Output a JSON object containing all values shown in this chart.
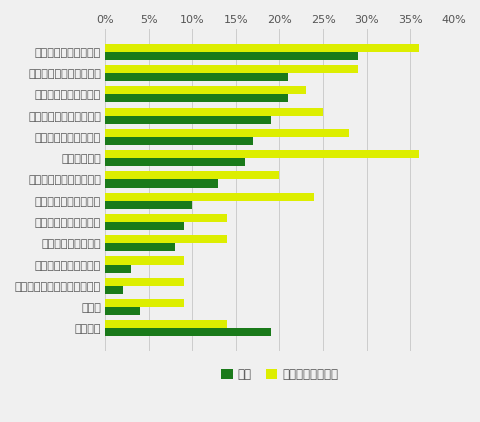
{
  "categories": [
    "少ない量は作りにくい",
    "室内のにおいが気になる",
    "同じ味が続いて飽きる",
    "作りすぎて余ってしまう",
    "レパートリーが少ない",
    "食費がかかる",
    "塩分を摂り過ぎてしまう",
    "食事の時間が長くなる",
    "調理・味つけが難しい",
    "調理の手間がかかる",
    "栄養のバランスが悪い",
    "家族・友人などに喜ばれない",
    "その他",
    "特にない"
  ],
  "zentai": [
    29,
    21,
    21,
    19,
    17,
    16,
    13,
    10,
    9,
    8,
    3,
    2,
    4,
    19
  ],
  "lemon": [
    36,
    29,
    23,
    25,
    28,
    36,
    20,
    24,
    14,
    14,
    9,
    9,
    9,
    14
  ],
  "color_zentai": "#1a7a1a",
  "color_lemon": "#ddee00",
  "bar_height": 0.38,
  "xlim": [
    0,
    40
  ],
  "xticks": [
    0,
    5,
    10,
    15,
    20,
    25,
    30,
    35,
    40
  ],
  "xtick_labels": [
    "0%",
    "5%",
    "10%",
    "15%",
    "20%",
    "25%",
    "30%",
    "35%",
    "40%"
  ],
  "legend_zentai": "全体",
  "legend_lemon": "レモン果汁使用者",
  "grid_color": "#cccccc",
  "bg_color": "#f0f0f0",
  "tick_label_color": "#555555",
  "fontsize_label": 8.0,
  "fontsize_tick": 8.0,
  "fontsize_legend": 8.5
}
